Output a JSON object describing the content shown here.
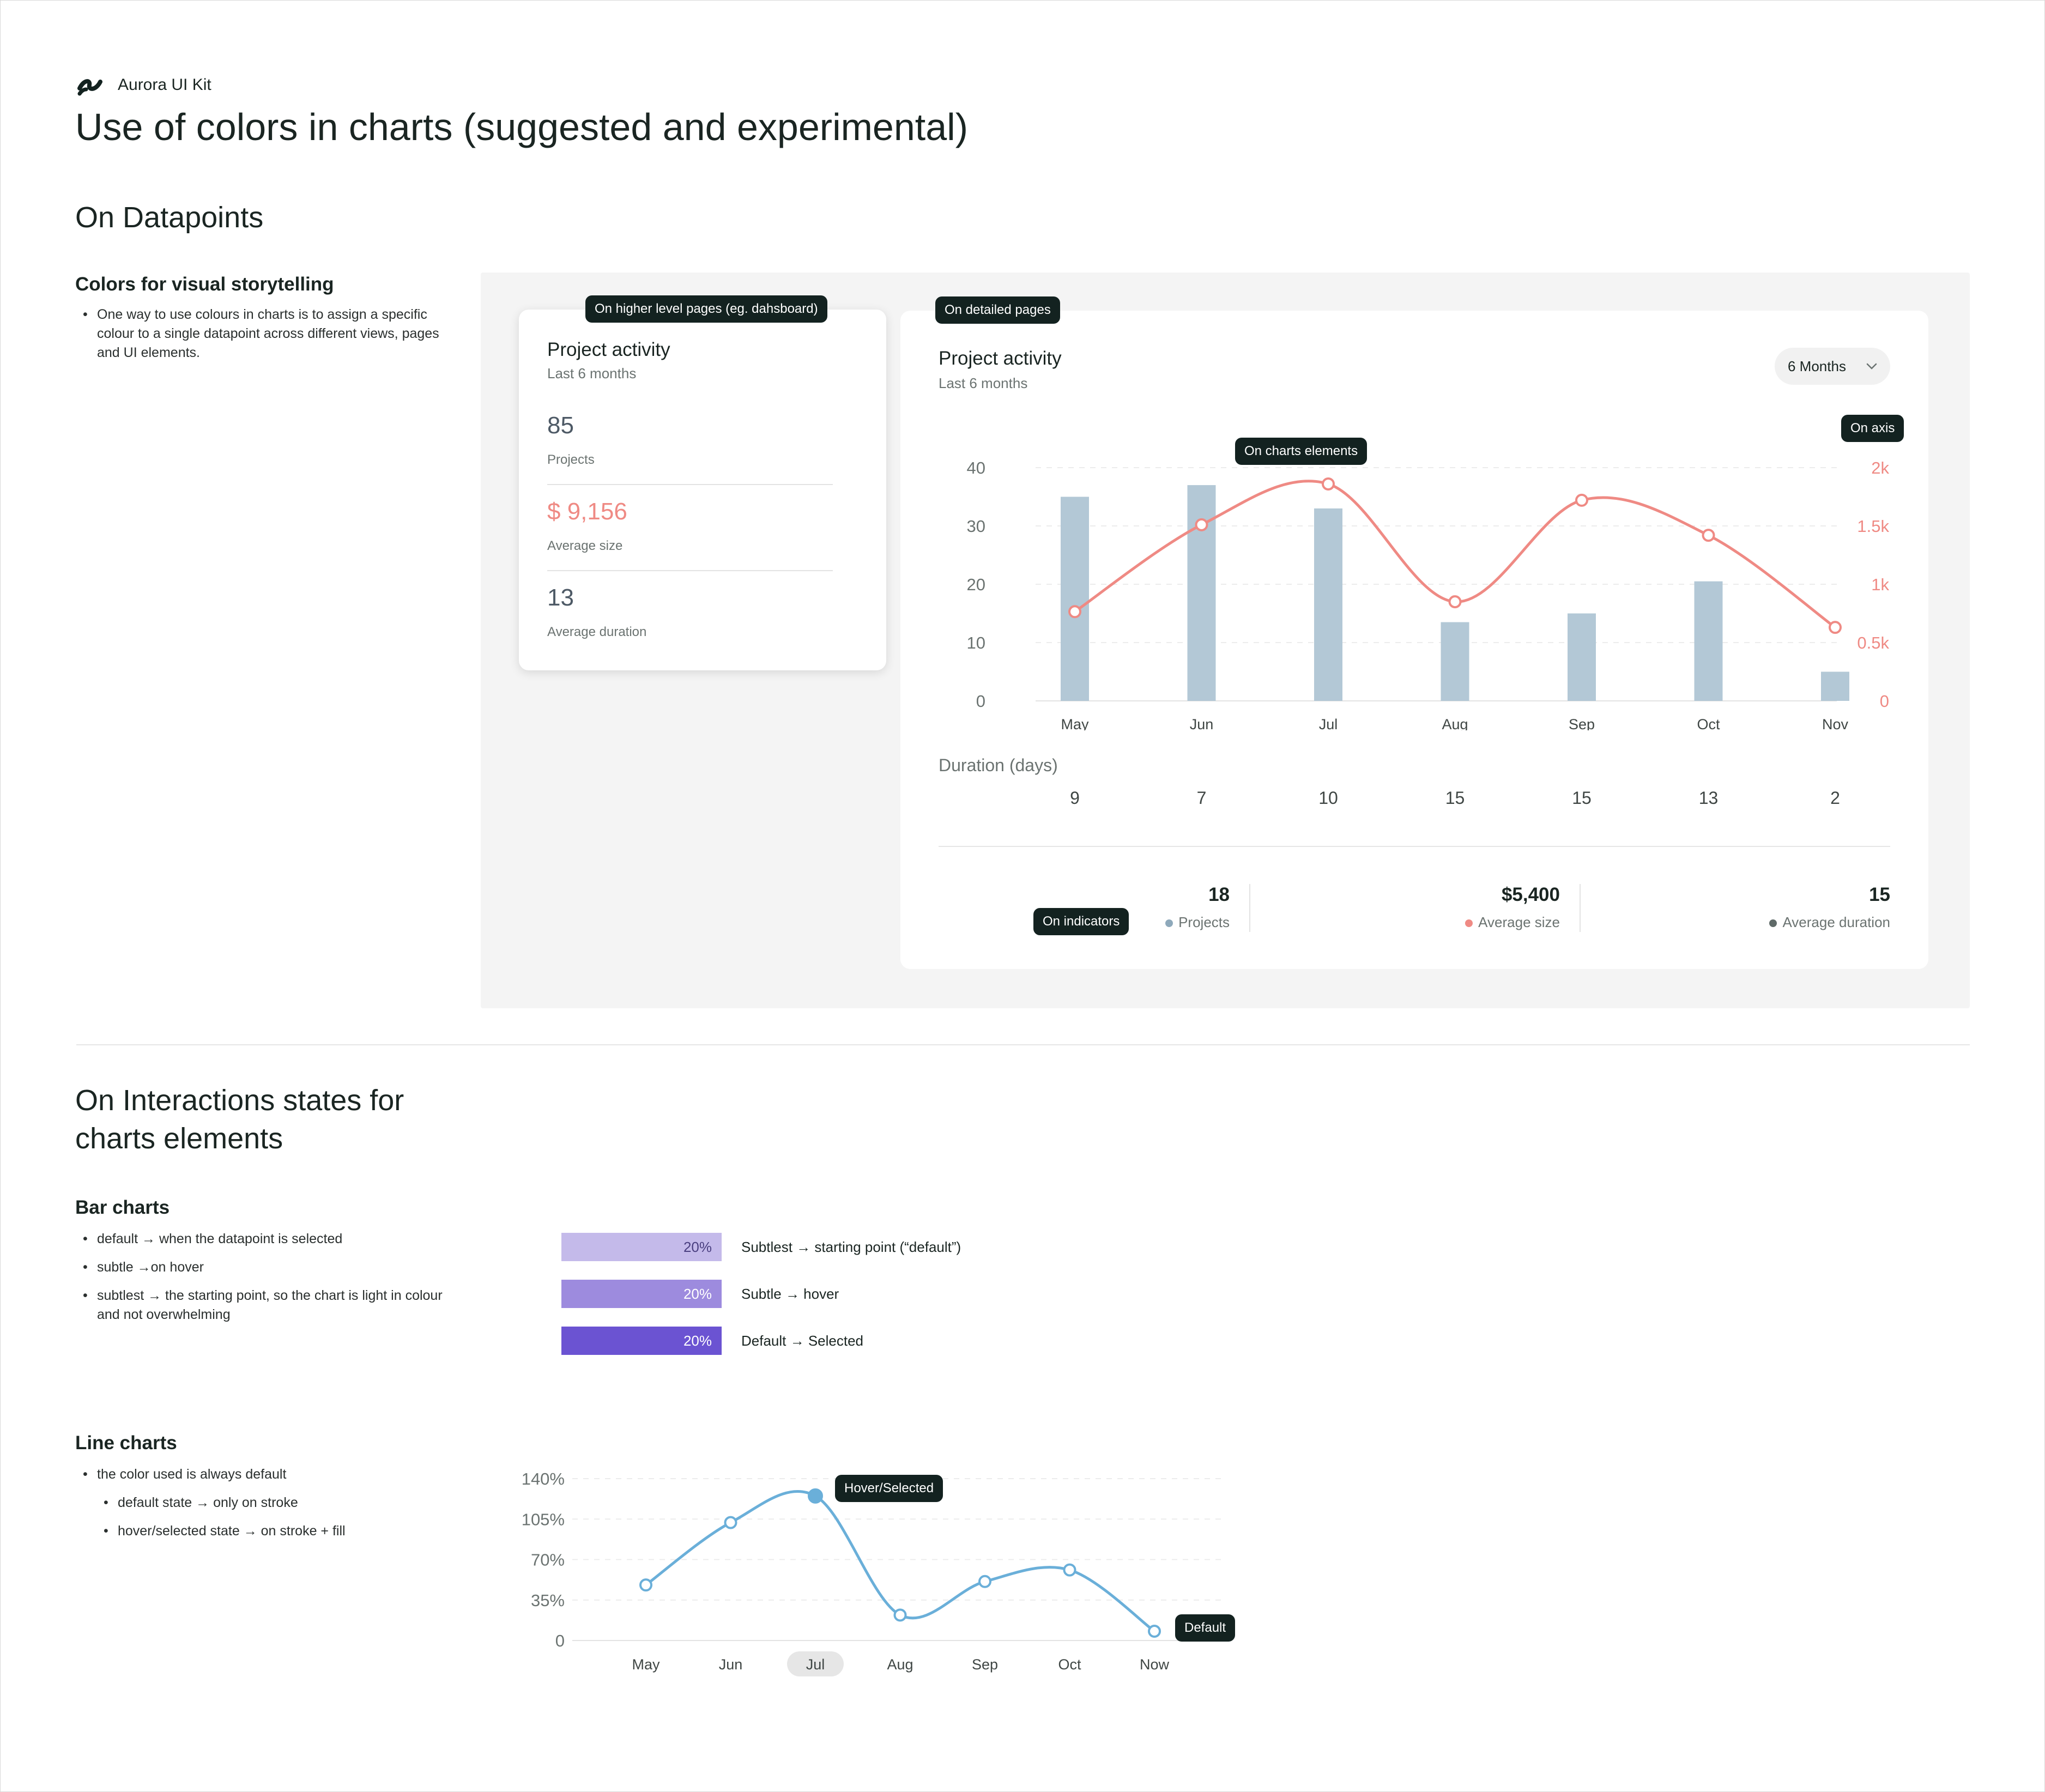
{
  "brand": {
    "name": "Aurora UI Kit"
  },
  "page_title": "Use of colors in charts (suggested and experimental)",
  "colors": {
    "bar": "#b3c8d6",
    "line": "#ef8a84",
    "purple_subtlest": "#c4baea",
    "purple_subtle": "#9d8bde",
    "purple_default": "#6b53d2",
    "blue_line": "#6aafd9",
    "dark": "#132220"
  },
  "section_datapoints": {
    "heading": "On Datapoints",
    "sub_heading": "Colors for visual storytelling",
    "bullets": [
      "One way to use colours in charts is to assign a specific colour to a single datapoint across different views, pages and UI elements."
    ],
    "tags": {
      "higher": "On higher level pages (eg. dahsboard)",
      "detailed": "On detailed pages",
      "chart_elements": "On charts elements",
      "axis": "On axis",
      "indicators": "On indicators"
    },
    "summary_card": {
      "title": "Project activity",
      "subtitle": "Last 6 months",
      "stats": [
        {
          "value": "85",
          "label": "Projects"
        },
        {
          "value": "$ 9,156",
          "label": "Average size"
        },
        {
          "value": "13",
          "label": "Average duration"
        }
      ]
    },
    "detail_card": {
      "title": "Project activity",
      "subtitle": "Last 6 months",
      "dropdown": "6 Months",
      "duration_label": "Duration (days)",
      "durations": [
        "9",
        "7",
        "10",
        "15",
        "15",
        "13",
        "2"
      ],
      "indicators": [
        {
          "value": "18",
          "label": "Projects"
        },
        {
          "value": "$5,400",
          "label": "Average size"
        },
        {
          "value": "15",
          "label": "Average duration"
        }
      ]
    }
  },
  "chart_data": [
    {
      "type": "bar",
      "title": "Project activity",
      "categories": [
        "May",
        "Jun",
        "Jul",
        "Aug",
        "Sep",
        "Oct",
        "Nov"
      ],
      "series": [
        {
          "name": "Projects",
          "type": "bar",
          "axis": "left",
          "values": [
            35,
            37,
            33,
            13.5,
            15,
            20.5,
            5
          ]
        },
        {
          "name": "Average size",
          "type": "line",
          "axis": "right",
          "values": [
            765,
            1510,
            1860,
            850,
            1720,
            1420,
            630
          ]
        }
      ],
      "ylim": [
        0,
        40
      ],
      "y_ticks": [
        "0",
        "10",
        "20",
        "30",
        "40"
      ],
      "y2lim": [
        0,
        2000
      ],
      "y2_ticks": [
        "0",
        "0.5k",
        "1k",
        "1.5k",
        "2k"
      ]
    },
    {
      "type": "bar",
      "orientation": "horizontal",
      "categories": [
        "Subtlest → starting point (“default”)",
        "Subtle → hover",
        "Default → Selected"
      ],
      "values": [
        20,
        20,
        20
      ],
      "value_labels": [
        "20%",
        "20%",
        "20%"
      ]
    },
    {
      "type": "line",
      "categories": [
        "May",
        "Jun",
        "Jul",
        "Aug",
        "Sep",
        "Oct",
        "Now"
      ],
      "values": [
        48,
        102,
        125,
        22,
        51,
        61,
        8
      ],
      "ylim": [
        0,
        140
      ],
      "y_ticks": [
        "0",
        "35%",
        "70%",
        "105%",
        "140%"
      ],
      "selected": "Jul",
      "annotations": {
        "hover": "Hover/Selected",
        "default": "Default"
      }
    }
  ],
  "section_interactions": {
    "heading": "On Interactions states for charts elements",
    "bar_heading": "Bar charts",
    "bar_bullets": [
      "default → when the datapoint is selected",
      "subtle →on hover",
      "subtlest → the starting point, so the chart is light in colour and not overwhelming"
    ],
    "line_heading": "Line charts",
    "line_bullets": [
      "the color used is always default"
    ],
    "line_sub_bullets": [
      "default state → only on stroke",
      "hover/selected state → on stroke + fill"
    ]
  }
}
